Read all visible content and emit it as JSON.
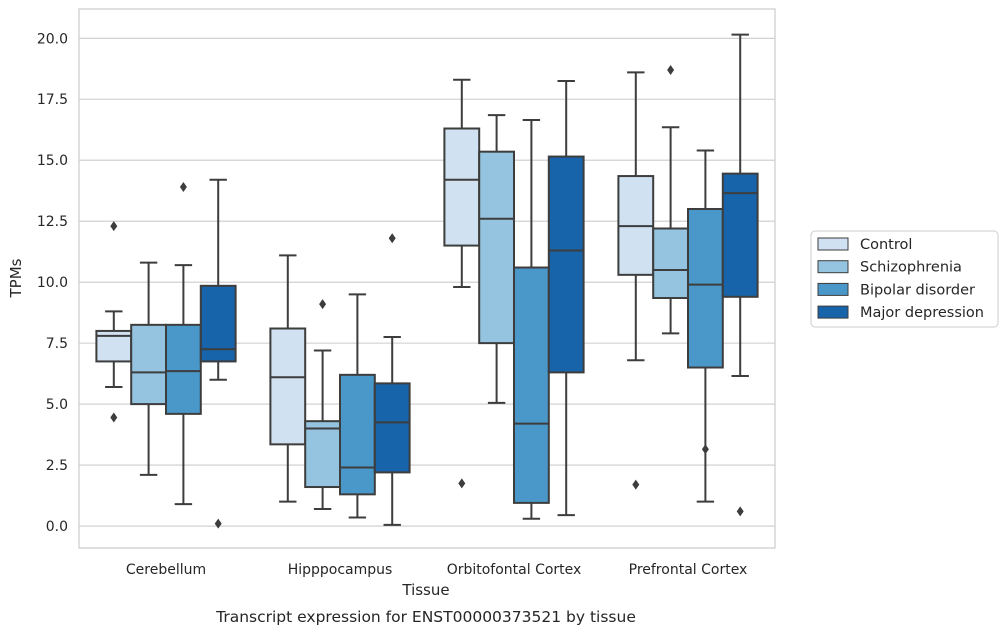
{
  "chart_data": {
    "type": "box",
    "title": "",
    "caption": "Transcript expression for ENST00000373521 by tissue",
    "xlabel": "Tissue",
    "ylabel": "TPMs",
    "ylim": [
      -0.9,
      21.2
    ],
    "yticks": [
      "0.0",
      "2.5",
      "5.0",
      "7.5",
      "10.0",
      "12.5",
      "15.0",
      "17.5",
      "20.0"
    ],
    "grid": "horizontal",
    "legend_position": "right",
    "categories": [
      "Cerebellum",
      "Hipppocampus",
      "Orbitofontal Cortex",
      "Prefrontal Cortex"
    ],
    "series": [
      {
        "name": "Control",
        "color": "#d0e1f2",
        "boxes": [
          {
            "whislo": 5.7,
            "q1": 6.75,
            "med": 7.8,
            "q3": 8.0,
            "whishi": 8.8,
            "fliers": [
              12.3,
              4.45
            ]
          },
          {
            "whislo": 1.0,
            "q1": 3.35,
            "med": 6.1,
            "q3": 8.1,
            "whishi": 11.1,
            "fliers": []
          },
          {
            "whislo": 9.8,
            "q1": 11.5,
            "med": 14.2,
            "q3": 16.3,
            "whishi": 18.3,
            "fliers": [
              1.75
            ]
          },
          {
            "whislo": 6.8,
            "q1": 10.3,
            "med": 12.3,
            "q3": 14.35,
            "whishi": 18.6,
            "fliers": [
              1.7
            ]
          }
        ]
      },
      {
        "name": "Schizophrenia",
        "color": "#94c4df",
        "boxes": [
          {
            "whislo": 2.1,
            "q1": 5.0,
            "med": 6.3,
            "q3": 8.25,
            "whishi": 10.8,
            "fliers": []
          },
          {
            "whislo": 0.7,
            "q1": 1.6,
            "med": 4.0,
            "q3": 4.3,
            "whishi": 7.2,
            "fliers": [
              9.1
            ]
          },
          {
            "whislo": 5.05,
            "q1": 7.5,
            "med": 12.6,
            "q3": 15.35,
            "whishi": 16.85,
            "fliers": []
          },
          {
            "whislo": 7.9,
            "q1": 9.35,
            "med": 10.5,
            "q3": 12.2,
            "whishi": 16.35,
            "fliers": [
              18.7
            ]
          }
        ]
      },
      {
        "name": "Bipolar disorder",
        "color": "#4a98c9",
        "boxes": [
          {
            "whislo": 0.9,
            "q1": 4.6,
            "med": 6.35,
            "q3": 8.25,
            "whishi": 10.7,
            "fliers": [
              13.9
            ]
          },
          {
            "whislo": 0.35,
            "q1": 1.3,
            "med": 2.4,
            "q3": 6.2,
            "whishi": 9.5,
            "fliers": []
          },
          {
            "whislo": 0.3,
            "q1": 0.95,
            "med": 4.2,
            "q3": 10.6,
            "whishi": 16.65,
            "fliers": []
          },
          {
            "whislo": 1.0,
            "q1": 6.5,
            "med": 9.9,
            "q3": 13.0,
            "whishi": 15.4,
            "fliers": [
              3.15
            ]
          }
        ]
      },
      {
        "name": "Major depression",
        "color": "#1764ab",
        "boxes": [
          {
            "whislo": 6.0,
            "q1": 6.75,
            "med": 7.25,
            "q3": 9.85,
            "whishi": 14.2,
            "fliers": [
              0.1
            ]
          },
          {
            "whislo": 0.05,
            "q1": 2.2,
            "med": 4.25,
            "q3": 5.85,
            "whishi": 7.75,
            "fliers": [
              11.8
            ]
          },
          {
            "whislo": 0.45,
            "q1": 6.3,
            "med": 11.3,
            "q3": 15.15,
            "whishi": 18.25,
            "fliers": []
          },
          {
            "whislo": 6.15,
            "q1": 9.4,
            "med": 13.65,
            "q3": 14.45,
            "whishi": 20.15,
            "fliers": [
              0.6
            ]
          }
        ]
      }
    ]
  }
}
